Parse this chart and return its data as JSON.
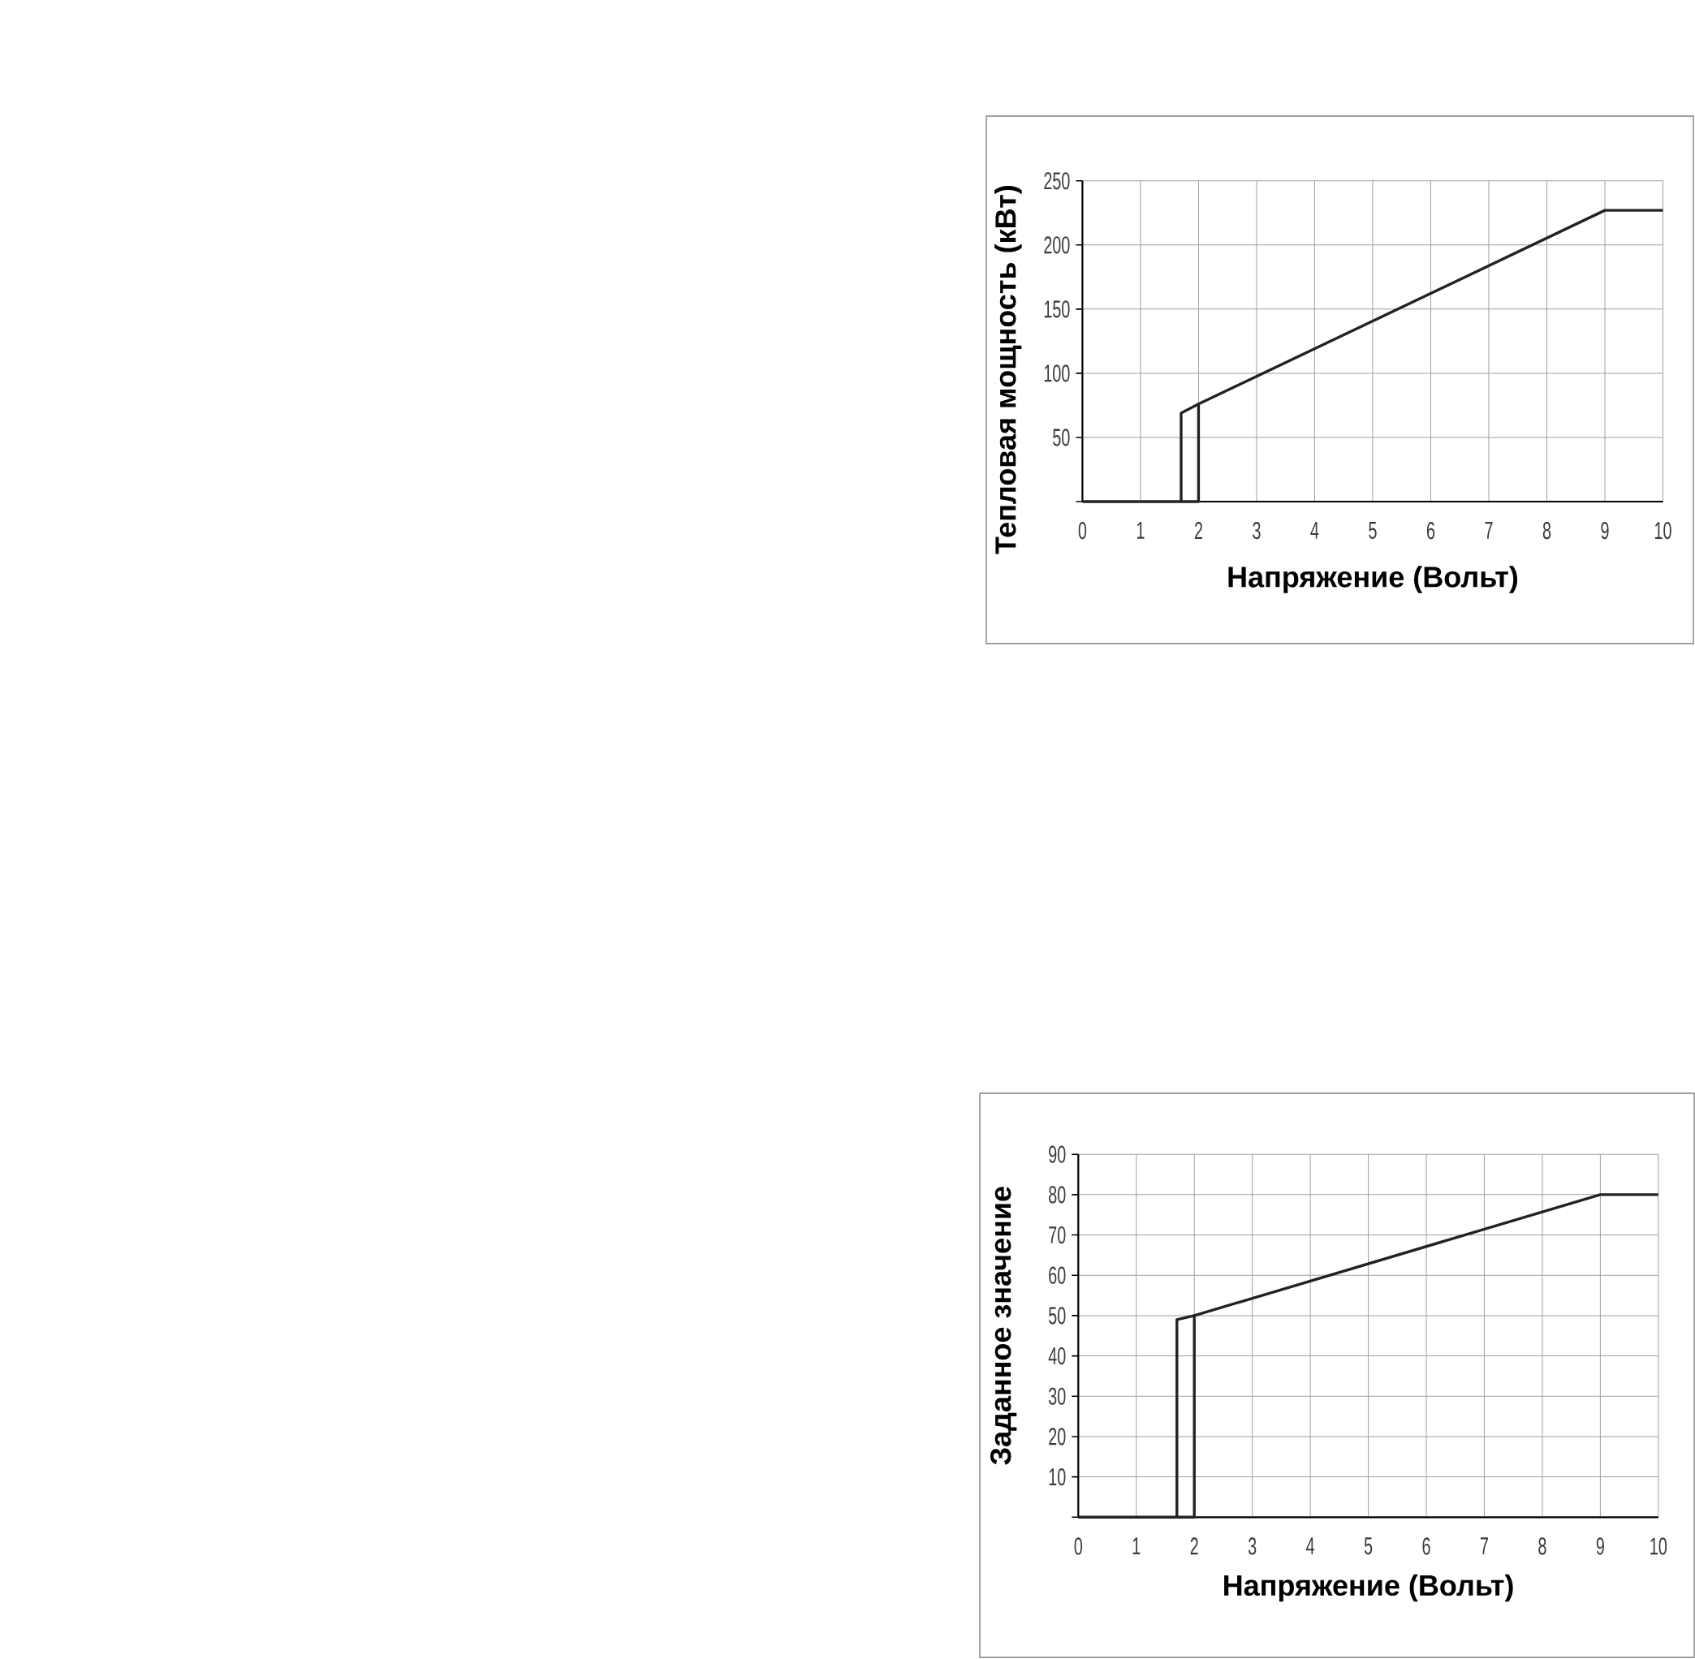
{
  "chart_data": [
    {
      "type": "line",
      "xlabel": "Напряжение (Вольт)",
      "ylabel": "Тепловая мощность (кВт)",
      "xlim": [
        0,
        10
      ],
      "ylim": [
        0,
        250
      ],
      "xticks": [
        0,
        1,
        2,
        3,
        4,
        5,
        6,
        7,
        8,
        9,
        10
      ],
      "yticks": [
        {
          "value": 0,
          "label": null
        },
        50,
        100,
        150,
        200,
        250
      ],
      "grid": true,
      "series": [
        {
          "color": "#222222",
          "x": [
            0,
            2,
            2,
            9,
            10
          ],
          "values": [
            0,
            0,
            76,
            227,
            227
          ]
        },
        {
          "color": "#222222",
          "x": [
            1.7,
            1.7,
            2
          ],
          "values": [
            0,
            69,
            76
          ]
        }
      ]
    },
    {
      "type": "line",
      "xlabel": "Напряжение (Вольт)",
      "ylabel": "Заданное значение",
      "xlim": [
        0,
        10
      ],
      "ylim": [
        0,
        90
      ],
      "xticks": [
        0,
        1,
        2,
        3,
        4,
        5,
        6,
        7,
        8,
        9,
        10
      ],
      "yticks": [
        {
          "value": 0,
          "label": null
        },
        10,
        20,
        30,
        40,
        50,
        60,
        70,
        80,
        90
      ],
      "grid": true,
      "series": [
        {
          "color": "#222222",
          "x": [
            0,
            2,
            2,
            9,
            10
          ],
          "values": [
            0,
            0,
            50,
            80,
            80
          ]
        },
        {
          "color": "#222222",
          "x": [
            1.7,
            1.7,
            2
          ],
          "values": [
            0,
            49,
            50
          ]
        }
      ]
    }
  ]
}
